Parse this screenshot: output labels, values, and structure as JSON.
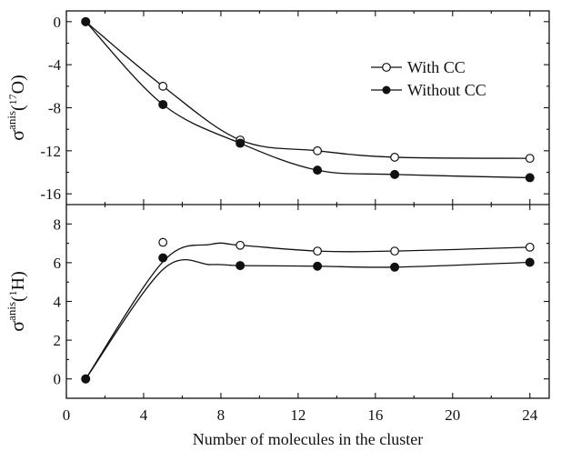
{
  "chart_data": [
    {
      "type": "scatter",
      "panel": "top",
      "ylabel_base": "σ",
      "ylabel_sup": "anis",
      "ylabel_open": "(",
      "ylabel_iso": "17",
      "ylabel_elem": "O)",
      "xlim": [
        0,
        25
      ],
      "ylim": [
        -17,
        1
      ],
      "yticks": [
        0,
        -4,
        -8,
        -12,
        -16
      ],
      "grid": false,
      "legend_position": "top-right",
      "series": [
        {
          "name": "With CC",
          "marker": "open-circle",
          "x": [
            1,
            5,
            9,
            13,
            17,
            24
          ],
          "y": [
            0,
            -6.0,
            -11.0,
            -12.0,
            -12.6,
            -12.7
          ]
        },
        {
          "name": "Without CC",
          "marker": "filled-circle",
          "x": [
            1,
            5,
            9,
            13,
            17,
            24
          ],
          "y": [
            0,
            -7.7,
            -11.3,
            -13.8,
            -14.2,
            -14.5
          ]
        }
      ]
    },
    {
      "type": "scatter",
      "panel": "bottom",
      "ylabel_base": "σ",
      "ylabel_sup": "anis",
      "ylabel_open": "(",
      "ylabel_iso": "1",
      "ylabel_elem": "H)",
      "xlabel": "Number of molecules in the cluster",
      "xlim": [
        0,
        25
      ],
      "ylim": [
        -1,
        9
      ],
      "xticks": [
        0,
        4,
        8,
        12,
        16,
        20,
        24
      ],
      "yticks": [
        0,
        2,
        4,
        6,
        8
      ],
      "grid": false,
      "series": [
        {
          "name": "With CC",
          "marker": "open-circle",
          "x": [
            1,
            5,
            9,
            13,
            17,
            24
          ],
          "y": [
            0,
            7.05,
            6.9,
            6.6,
            6.6,
            6.8
          ]
        },
        {
          "name": "Without CC",
          "marker": "filled-circle",
          "x": [
            1,
            5,
            9,
            13,
            17,
            24
          ],
          "y": [
            0,
            6.25,
            5.85,
            5.82,
            5.77,
            6.02
          ]
        }
      ]
    }
  ]
}
